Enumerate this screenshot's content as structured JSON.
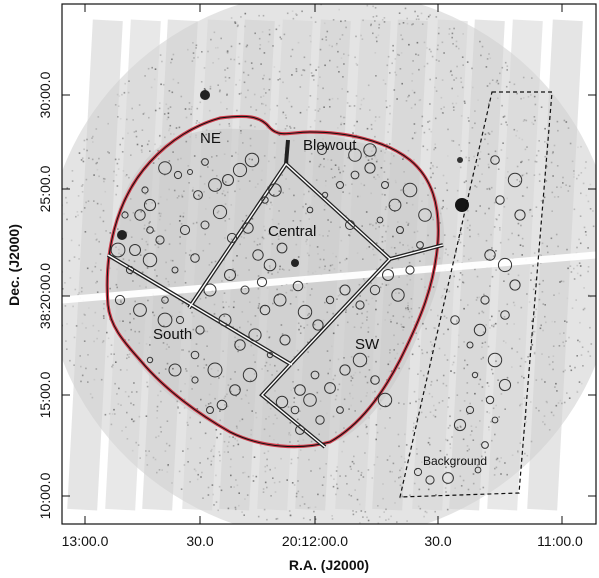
{
  "figure": {
    "regions": [
      {
        "id": "ne",
        "label": "NE"
      },
      {
        "id": "blowout",
        "label": "Blowout"
      },
      {
        "id": "central",
        "label": "Central"
      },
      {
        "id": "south",
        "label": "South"
      },
      {
        "id": "sw",
        "label": "SW"
      },
      {
        "id": "background",
        "label": "Background"
      }
    ],
    "x_axis": {
      "title": "R.A. (J2000)",
      "ticks": [
        "13:00.0",
        "30.0",
        "20:12:00.0",
        "30.0",
        "11:00.0"
      ]
    },
    "y_axis": {
      "title": "Dec. (J2000)",
      "ticks": [
        "30:00.0",
        "25:00.0",
        "38:20:00.0",
        "15:00.0",
        "10:00.0"
      ]
    },
    "colors": {
      "outer_contour": "#d23b4a",
      "region_boxes": "#222222",
      "background_box": "#111111",
      "source_circles": "#333333"
    }
  }
}
